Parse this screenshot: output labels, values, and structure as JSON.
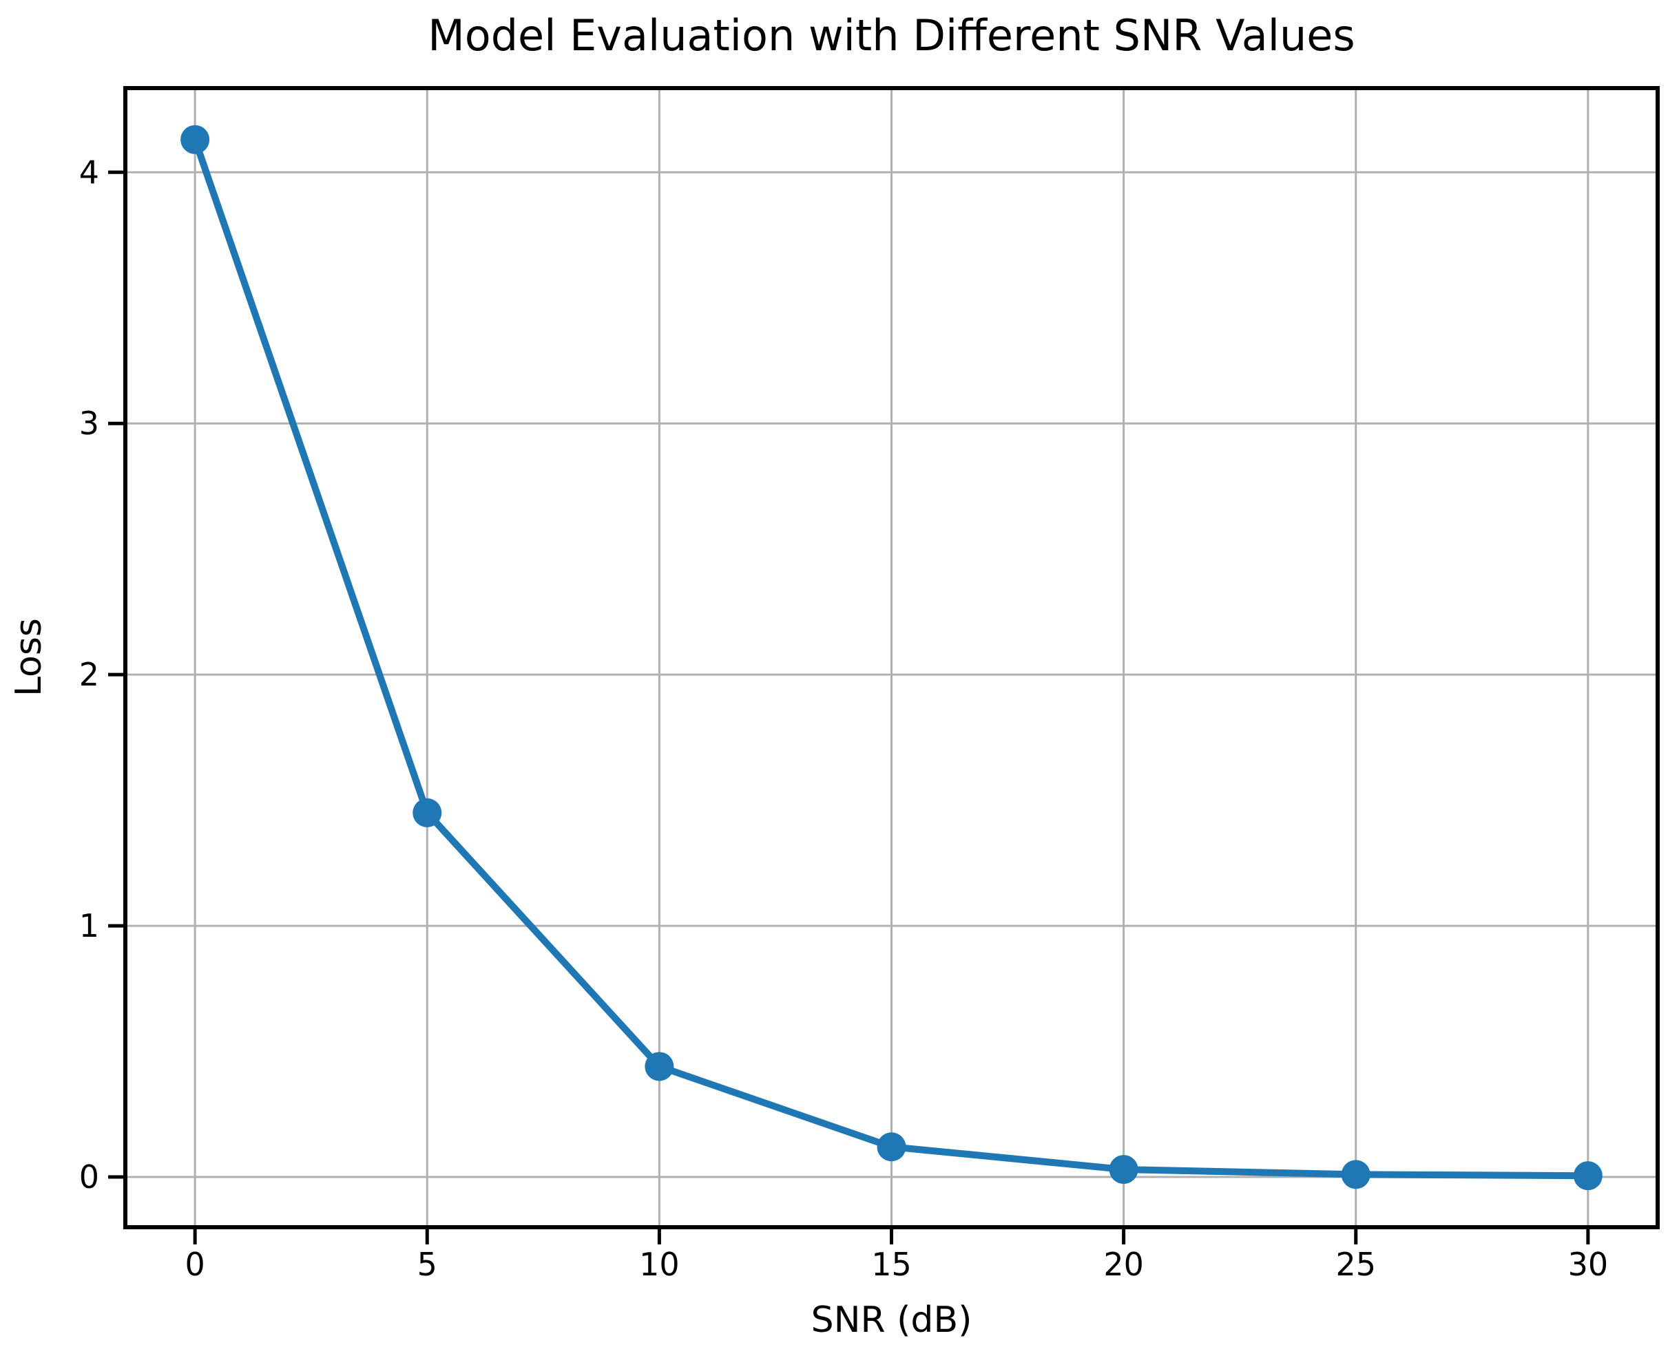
{
  "chart_data": {
    "type": "line",
    "title": "Model Evaluation with Different SNR Values",
    "xlabel": "SNR (dB)",
    "ylabel": "Loss",
    "x": [
      0,
      5,
      10,
      15,
      20,
      25,
      30
    ],
    "series": [
      {
        "name": "Loss",
        "values": [
          4.13,
          1.45,
          0.44,
          0.12,
          0.03,
          0.01,
          0.005
        ]
      }
    ],
    "xticks": [
      0,
      5,
      10,
      15,
      20,
      25,
      30
    ],
    "xtick_labels": [
      "0",
      "5",
      "10",
      "15",
      "20",
      "25",
      "30"
    ],
    "yticks": [
      0,
      1,
      2,
      3,
      4
    ],
    "ytick_labels": [
      "0",
      "1",
      "2",
      "3",
      "4"
    ],
    "xlim": [
      -1.5,
      31.5
    ],
    "ylim": [
      -0.2,
      4.335
    ],
    "grid": true,
    "legend_position": "none",
    "line_color": "#1f77b4",
    "marker": "circle",
    "grid_color": "#b0b0b0",
    "axis_color": "#000000",
    "background_color": "#ffffff"
  }
}
